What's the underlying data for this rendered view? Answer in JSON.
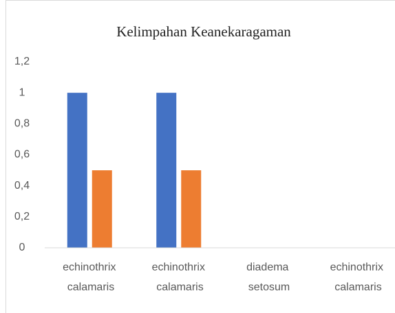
{
  "chart_data": {
    "type": "bar",
    "title": "Kelimpahan Keanekaragaman",
    "categories": [
      "echinothrix calamaris",
      "echinothrix calamaris",
      "diadema setosum",
      "echinothrix calamaris"
    ],
    "series": [
      {
        "color": "#4472c4",
        "values": [
          1,
          1,
          0,
          0
        ]
      },
      {
        "color": "#ed7d31",
        "values": [
          0.5,
          0.5,
          0,
          0
        ]
      }
    ],
    "ylim": [
      0,
      1.2
    ],
    "yticks": [
      0,
      {
        "value": 0.2,
        "label": "0,2"
      },
      {
        "value": 0.4,
        "label": "0,4"
      },
      {
        "value": 0.6,
        "label": "0,6"
      },
      {
        "value": 0.8,
        "label": "0,8"
      },
      1,
      {
        "value": 1.2,
        "label": "1,2"
      }
    ],
    "grid": false
  }
}
